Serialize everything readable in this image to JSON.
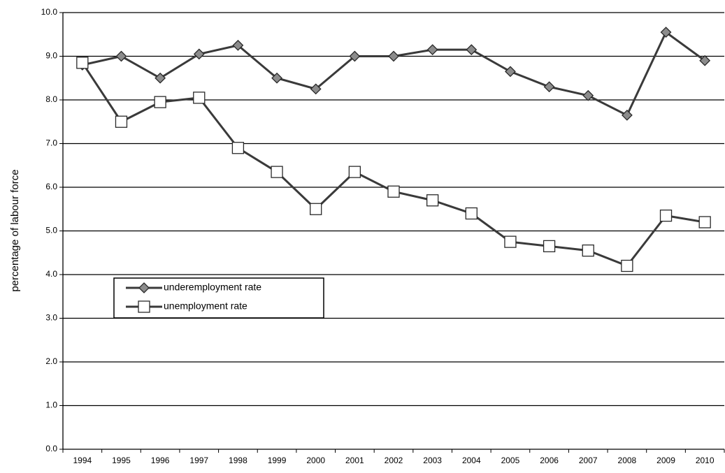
{
  "chart_data": {
    "type": "line",
    "y_label": "percentage of labour force",
    "categories": [
      "1994",
      "1995",
      "1996",
      "1997",
      "1998",
      "1999",
      "2000",
      "2001",
      "2002",
      "2003",
      "2004",
      "2005",
      "2006",
      "2007",
      "2008",
      "2009",
      "2010"
    ],
    "series": [
      {
        "name": "underemployment rate",
        "color": "#3a3a3a",
        "marker": "diamond",
        "marker_color": "#8c8c8c",
        "values": [
          8.8,
          9.0,
          8.5,
          9.05,
          9.25,
          8.5,
          8.25,
          9.0,
          9.0,
          9.15,
          9.15,
          8.65,
          8.3,
          8.1,
          7.65,
          9.55,
          8.9
        ]
      },
      {
        "name": "unemployment rate",
        "color": "#3a3a3a",
        "marker": "square",
        "marker_color": "#ffffff",
        "values": [
          8.85,
          7.5,
          7.95,
          8.05,
          6.9,
          6.35,
          5.5,
          6.35,
          5.9,
          5.7,
          5.4,
          4.75,
          4.65,
          4.55,
          4.2,
          5.35,
          5.2
        ]
      }
    ],
    "ylim": [
      0,
      10
    ],
    "yticks": [
      {
        "value": 0,
        "label": "0.0"
      },
      {
        "value": 1,
        "label": "1.0"
      },
      {
        "value": 2,
        "label": "2.0"
      },
      {
        "value": 3,
        "label": "3.0"
      },
      {
        "value": 4,
        "label": "4.0"
      },
      {
        "value": 5,
        "label": "5.0"
      },
      {
        "value": 6,
        "label": "6.0"
      },
      {
        "value": 7,
        "label": "7.0"
      },
      {
        "value": 8,
        "label": "8.0"
      },
      {
        "value": 9,
        "label": "9.0"
      },
      {
        "value": 10,
        "label": "10.0"
      }
    ],
    "grid": true
  }
}
